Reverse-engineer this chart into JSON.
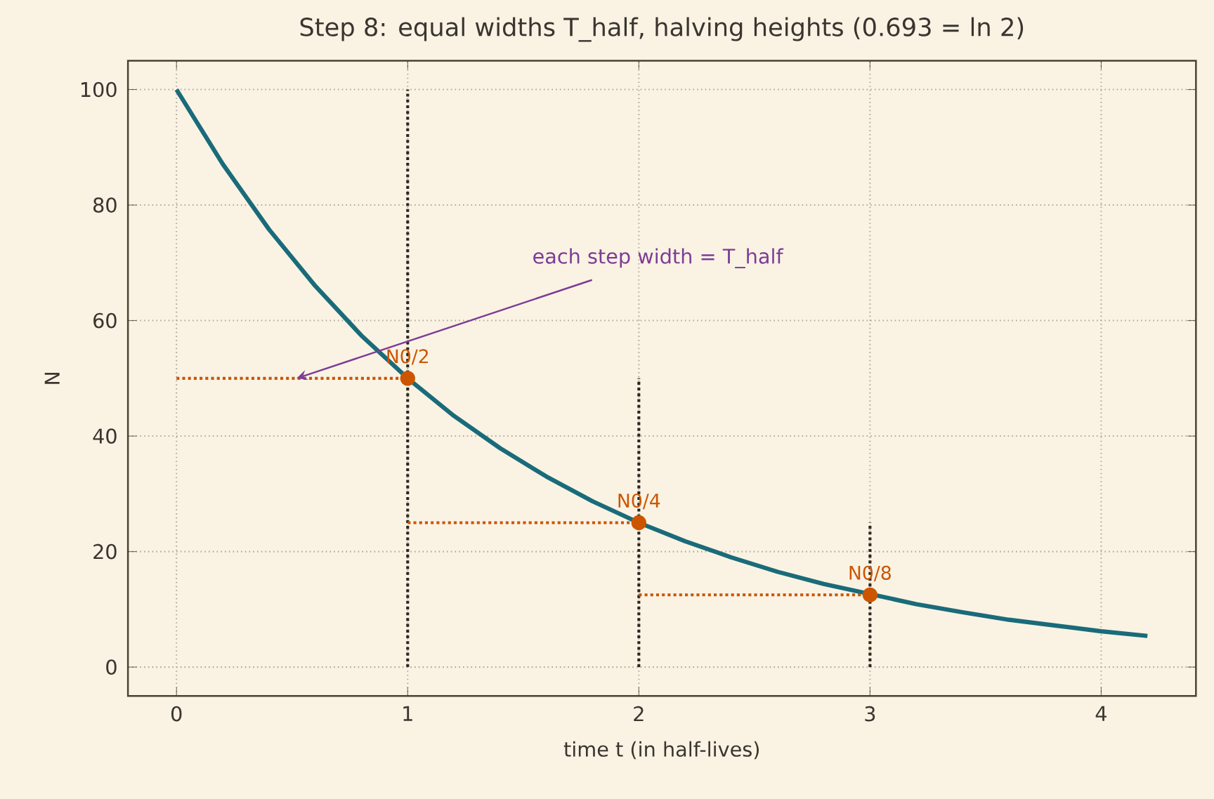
{
  "chart_data": {
    "type": "line",
    "title": "Step 8: equal widths T_half, halving heights  (0.693 = ln 2)",
    "xlabel": "time  t  (in half-lives)",
    "ylabel": "N",
    "xlim": [
      -0.21,
      4.41
    ],
    "ylim": [
      -5,
      105
    ],
    "xticks": [
      0,
      1,
      2,
      3,
      4
    ],
    "yticks": [
      0,
      20,
      40,
      60,
      80,
      100
    ],
    "grid": true,
    "series": [
      {
        "color": "#1a6b7a",
        "line_style": "solid",
        "marker": "none",
        "x": [
          0,
          0.2,
          0.4,
          0.6,
          0.8,
          1.0,
          1.2,
          1.4,
          1.6,
          1.8,
          2.0,
          2.2,
          2.4,
          2.6,
          2.8,
          3.2,
          3.4,
          3.6,
          3.8,
          4.0,
          4.2
        ],
        "values": [
          100,
          87.1,
          75.8,
          66.0,
          57.4,
          50,
          43.5,
          37.9,
          33.0,
          28.7,
          25,
          21.8,
          19.0,
          16.5,
          14.4,
          10.9,
          9.5,
          8.2,
          7.2,
          6.2,
          5.4
        ]
      },
      {
        "color": "#2b2620",
        "line_style": "dotted",
        "marker": "none",
        "x": [
          1,
          1
        ],
        "values": [
          0,
          100
        ]
      },
      {
        "color": "#2b2620",
        "line_style": "dotted",
        "marker": "none",
        "x": [
          2,
          2
        ],
        "values": [
          0,
          50
        ]
      },
      {
        "color": "#2b2620",
        "line_style": "dotted",
        "marker": "none",
        "x": [
          3,
          3
        ],
        "values": [
          0,
          25
        ]
      },
      {
        "color": "#cc5500",
        "line_style": "dotted",
        "marker": "none",
        "x": [
          0,
          1
        ],
        "values": [
          50,
          50
        ]
      },
      {
        "color": "#cc5500",
        "line_style": "dotted",
        "marker": "none",
        "x": [
          1,
          2
        ],
        "values": [
          25,
          25
        ]
      },
      {
        "color": "#cc5500",
        "line_style": "dotted",
        "marker": "none",
        "x": [
          2,
          3
        ],
        "values": [
          12.5,
          12.5
        ]
      },
      {
        "type": "scatter",
        "color": "#cc5500",
        "marker": "circle",
        "x": [
          1,
          2,
          3
        ],
        "values": [
          50,
          25,
          12.5
        ]
      }
    ],
    "annotations": [
      {
        "text": "N0/2",
        "x": 1,
        "y": 50
      },
      {
        "text": "N0/4",
        "x": 2,
        "y": 25
      },
      {
        "text": "N0/8",
        "x": 3,
        "y": 12.5
      },
      {
        "text": "each step width = T_half",
        "x": 0.52,
        "y": 50
      }
    ]
  }
}
